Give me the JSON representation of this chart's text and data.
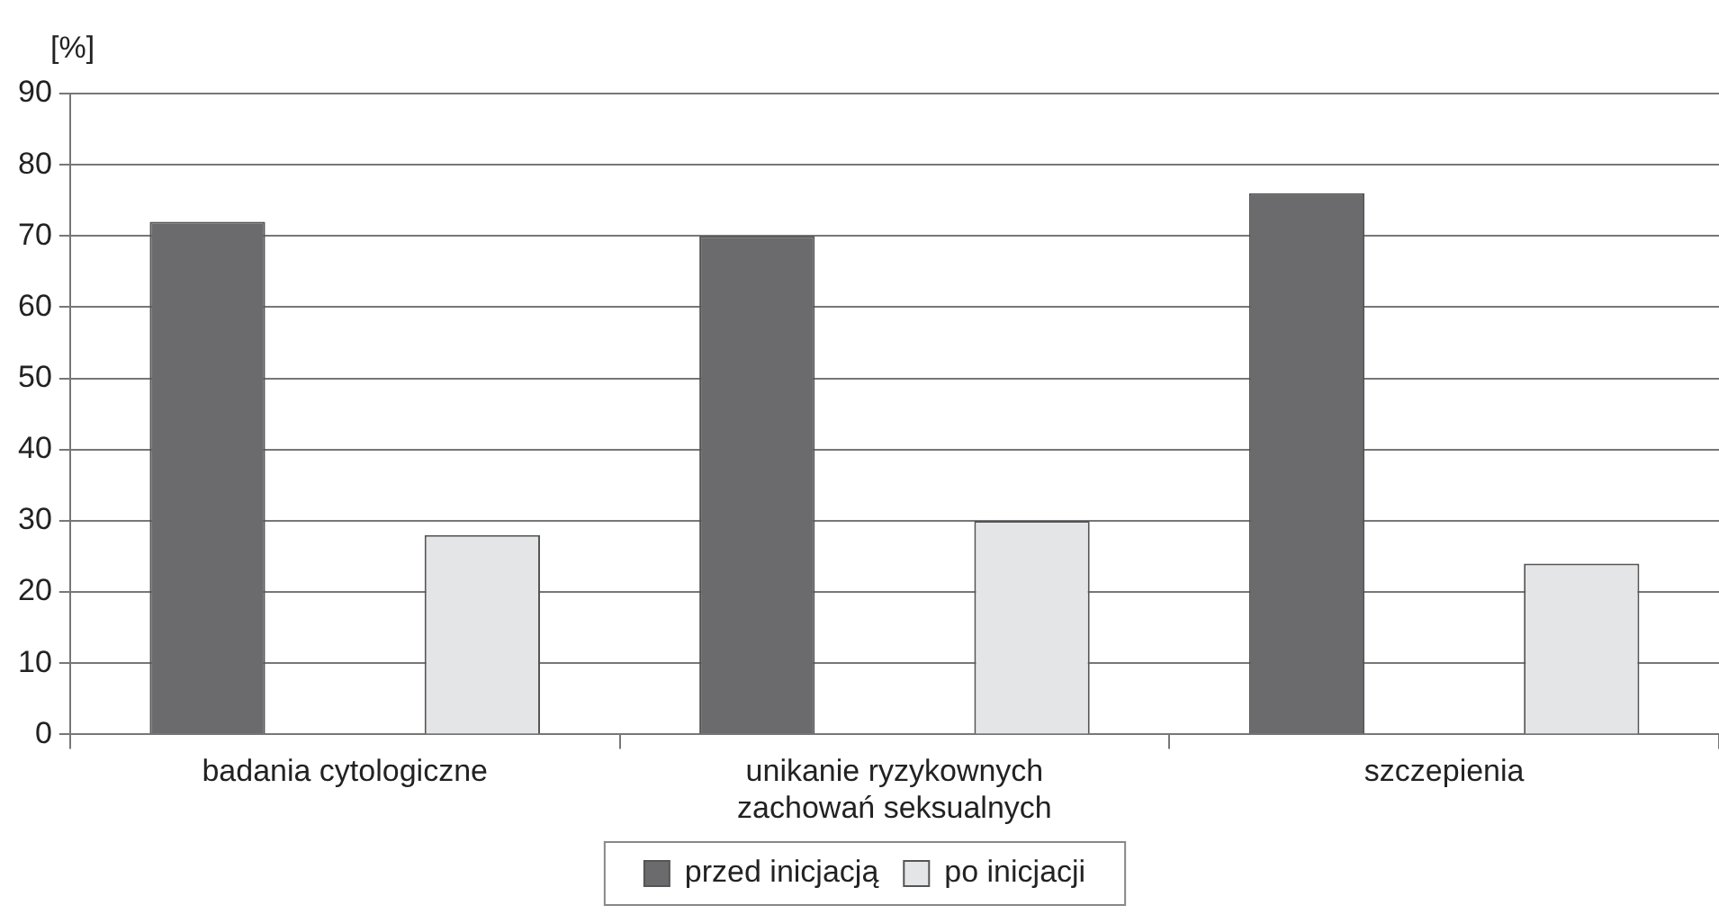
{
  "chart_data": {
    "type": "bar",
    "ylabel": "[%]",
    "categories": [
      "badania cytologiczne",
      "unikanie ryzykownych zachowań seksualnych",
      "szczepienia"
    ],
    "series": [
      {
        "name": "przed inicjacją",
        "color": "#6b6b6d",
        "values": [
          72,
          70,
          76
        ]
      },
      {
        "name": "po inicjacji",
        "color": "#e4e5e7",
        "values": [
          28,
          30,
          24
        ]
      }
    ],
    "ylim": [
      0,
      90
    ],
    "yticks": [
      0,
      10,
      20,
      30,
      40,
      50,
      60,
      70,
      80,
      90
    ],
    "grid": "y",
    "legend": "bottom"
  }
}
